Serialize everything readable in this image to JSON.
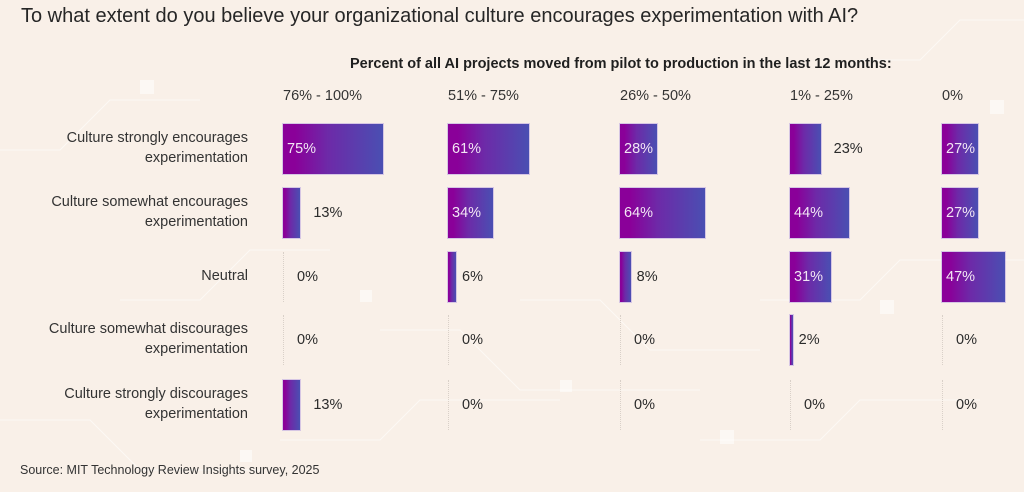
{
  "title": "To what extent do you believe your organizational culture encourages experimentation with AI?",
  "source": "Source: MIT Technology Review Insights survey, 2025",
  "colors": {
    "background": "#f9f0e8",
    "bar_start": "#8a0099",
    "bar_end": "#4a4fb2",
    "text": "#2b2b2b"
  },
  "chart_data": {
    "type": "bar",
    "orientation": "horizontal",
    "layout": "small-multiples",
    "title": "To what extent do you believe your organizational culture encourages experimentation with AI?",
    "subtitle": "Percent of all AI projects moved from pilot to production in the last 12 months:",
    "categories": [
      "Culture strongly encourages experimentation",
      "Culture somewhat encourages experimentation",
      "Neutral",
      "Culture somewhat discourages experimentation",
      "Culture strongly discourages experimentation"
    ],
    "category_lines": [
      [
        "Culture strongly encourages",
        "experimentation"
      ],
      [
        "Culture somewhat encourages",
        "experimentation"
      ],
      [
        "Neutral"
      ],
      [
        "Culture somewhat discourages",
        "experimentation"
      ],
      [
        "Culture strongly discourages",
        "experimentation"
      ]
    ],
    "series": [
      {
        "name": "76% - 100%",
        "values": [
          75,
          13,
          0,
          0,
          13
        ]
      },
      {
        "name": "51% - 75%",
        "values": [
          61,
          34,
          6,
          0,
          0
        ]
      },
      {
        "name": "26% - 50%",
        "values": [
          28,
          64,
          8,
          0,
          0
        ]
      },
      {
        "name": "1% - 25%",
        "values": [
          23,
          44,
          31,
          2,
          0
        ]
      },
      {
        "name": "0%",
        "values": [
          27,
          27,
          47,
          0,
          0
        ]
      }
    ],
    "value_suffix": "%",
    "xlim": [
      0,
      100
    ],
    "grid": false,
    "legend": "none",
    "source": "Source: MIT Technology Review Insights survey, 2025"
  }
}
